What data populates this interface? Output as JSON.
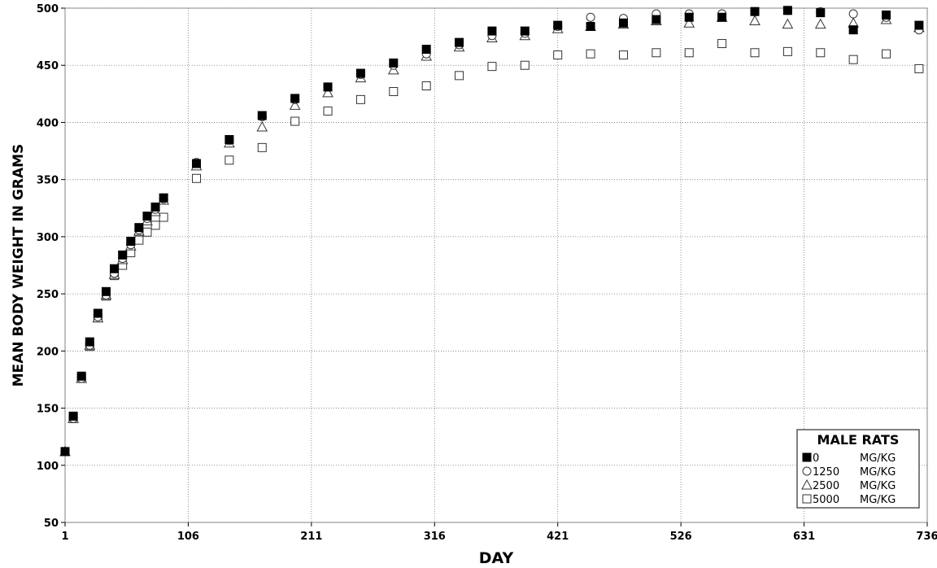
{
  "chart_data": {
    "type": "scatter",
    "title": "",
    "xlabel": "DAY",
    "ylabel": "MEAN BODY WEIGHT IN GRAMS",
    "xlim": [
      1,
      736
    ],
    "ylim": [
      50,
      500
    ],
    "x_ticks": [
      1,
      106,
      211,
      316,
      421,
      526,
      631,
      736
    ],
    "y_ticks": [
      50,
      100,
      150,
      200,
      250,
      300,
      350,
      400,
      450,
      500
    ],
    "grid": true,
    "legend": {
      "title": "MALE RATS",
      "placement": "bottom-right",
      "entries": [
        {
          "marker": "filled-square",
          "dose": "0",
          "unit": "MG/KG"
        },
        {
          "marker": "circle",
          "dose": "1250",
          "unit": "MG/KG"
        },
        {
          "marker": "triangle",
          "dose": "2500",
          "unit": "MG/KG"
        },
        {
          "marker": "square",
          "dose": "5000",
          "unit": "MG/KG"
        }
      ]
    },
    "series": [
      {
        "name": "0 MG/KG",
        "marker": "filled-square",
        "points": [
          [
            1,
            112
          ],
          [
            8,
            143
          ],
          [
            15,
            178
          ],
          [
            22,
            208
          ],
          [
            29,
            233
          ],
          [
            36,
            252
          ],
          [
            43,
            272
          ],
          [
            50,
            284
          ],
          [
            57,
            296
          ],
          [
            64,
            308
          ],
          [
            71,
            318
          ],
          [
            78,
            326
          ],
          [
            85,
            334
          ],
          [
            113,
            364
          ],
          [
            141,
            385
          ],
          [
            169,
            406
          ],
          [
            197,
            421
          ],
          [
            225,
            431
          ],
          [
            253,
            443
          ],
          [
            281,
            452
          ],
          [
            309,
            464
          ],
          [
            337,
            470
          ],
          [
            365,
            480
          ],
          [
            393,
            480
          ],
          [
            421,
            485
          ],
          [
            449,
            484
          ],
          [
            477,
            487
          ],
          [
            505,
            490
          ],
          [
            533,
            492
          ],
          [
            561,
            492
          ],
          [
            589,
            497
          ],
          [
            617,
            498
          ],
          [
            645,
            496
          ],
          [
            673,
            481
          ],
          [
            701,
            494
          ],
          [
            729,
            485
          ]
        ]
      },
      {
        "name": "1250 MG/KG",
        "marker": "circle",
        "points": [
          [
            1,
            112
          ],
          [
            8,
            141
          ],
          [
            15,
            176
          ],
          [
            22,
            205
          ],
          [
            29,
            230
          ],
          [
            36,
            249
          ],
          [
            43,
            268
          ],
          [
            50,
            281
          ],
          [
            57,
            293
          ],
          [
            64,
            306
          ],
          [
            71,
            316
          ],
          [
            78,
            324
          ],
          [
            85,
            333
          ],
          [
            113,
            365
          ],
          [
            141,
            384
          ],
          [
            169,
            405
          ],
          [
            197,
            420
          ],
          [
            225,
            431
          ],
          [
            253,
            442
          ],
          [
            281,
            450
          ],
          [
            309,
            460
          ],
          [
            337,
            468
          ],
          [
            365,
            476
          ],
          [
            393,
            478
          ],
          [
            421,
            484
          ],
          [
            449,
            492
          ],
          [
            477,
            491
          ],
          [
            505,
            495
          ],
          [
            533,
            495
          ],
          [
            561,
            495
          ],
          [
            589,
            497
          ],
          [
            617,
            498
          ],
          [
            645,
            497
          ],
          [
            673,
            495
          ],
          [
            701,
            492
          ],
          [
            729,
            481
          ]
        ]
      },
      {
        "name": "2500 MG/KG",
        "marker": "triangle",
        "points": [
          [
            1,
            112
          ],
          [
            8,
            141
          ],
          [
            15,
            176
          ],
          [
            22,
            205
          ],
          [
            29,
            229
          ],
          [
            36,
            249
          ],
          [
            43,
            267
          ],
          [
            50,
            280
          ],
          [
            57,
            292
          ],
          [
            64,
            305
          ],
          [
            71,
            314
          ],
          [
            78,
            322
          ],
          [
            85,
            332
          ],
          [
            113,
            362
          ],
          [
            141,
            382
          ],
          [
            169,
            396
          ],
          [
            197,
            415
          ],
          [
            225,
            426
          ],
          [
            253,
            439
          ],
          [
            281,
            446
          ],
          [
            309,
            458
          ],
          [
            337,
            466
          ],
          [
            365,
            474
          ],
          [
            393,
            476
          ],
          [
            421,
            482
          ],
          [
            449,
            484
          ],
          [
            477,
            486
          ],
          [
            505,
            489
          ],
          [
            533,
            487
          ],
          [
            561,
            492
          ],
          [
            589,
            489
          ],
          [
            617,
            486
          ],
          [
            645,
            486
          ],
          [
            673,
            487
          ],
          [
            701,
            490
          ],
          [
            729,
            483
          ]
        ]
      },
      {
        "name": "5000 MG/KG",
        "marker": "square",
        "points": [
          [
            1,
            112
          ],
          [
            8,
            141
          ],
          [
            15,
            176
          ],
          [
            22,
            204
          ],
          [
            29,
            229
          ],
          [
            36,
            248
          ],
          [
            43,
            266
          ],
          [
            50,
            275
          ],
          [
            57,
            286
          ],
          [
            64,
            297
          ],
          [
            71,
            304
          ],
          [
            78,
            310
          ],
          [
            85,
            317
          ],
          [
            113,
            351
          ],
          [
            141,
            367
          ],
          [
            169,
            378
          ],
          [
            197,
            401
          ],
          [
            225,
            410
          ],
          [
            253,
            420
          ],
          [
            281,
            427
          ],
          [
            309,
            432
          ],
          [
            337,
            441
          ],
          [
            365,
            449
          ],
          [
            393,
            450
          ],
          [
            421,
            459
          ],
          [
            449,
            460
          ],
          [
            477,
            459
          ],
          [
            505,
            461
          ],
          [
            533,
            461
          ],
          [
            561,
            469
          ],
          [
            589,
            461
          ],
          [
            617,
            462
          ],
          [
            645,
            461
          ],
          [
            673,
            455
          ],
          [
            701,
            460
          ],
          [
            729,
            447
          ]
        ]
      }
    ]
  }
}
